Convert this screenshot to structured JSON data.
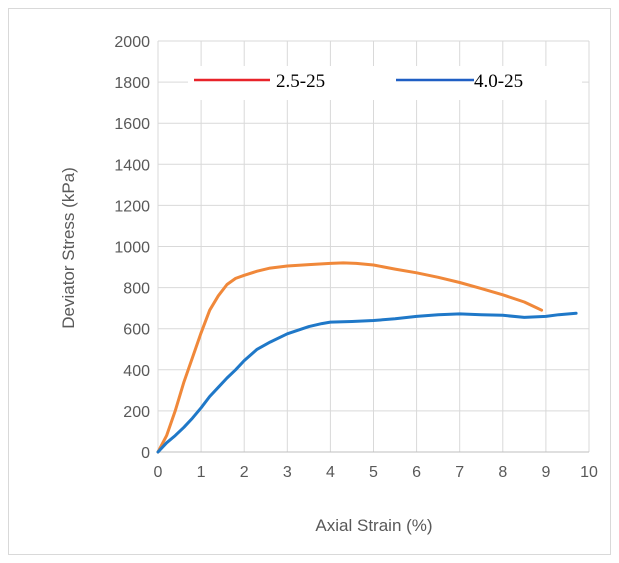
{
  "chart_data": {
    "type": "line",
    "title": "",
    "xlabel": "Axial Strain (%)",
    "ylabel": "Deviator Stress (kPa)",
    "xlim": [
      0,
      10
    ],
    "ylim": [
      0,
      2000
    ],
    "xticks": [
      0,
      1,
      2,
      3,
      4,
      5,
      6,
      7,
      8,
      9,
      10
    ],
    "yticks": [
      0,
      200,
      400,
      600,
      800,
      1000,
      1200,
      1400,
      1600,
      1800,
      2000
    ],
    "grid": true,
    "legend_position": "top",
    "legend": [
      {
        "label": "2.5-25",
        "color": "#e8232a"
      },
      {
        "label": "4.0-25",
        "color": "#1f5fc4"
      }
    ],
    "series": [
      {
        "color": "#f0883a",
        "x": [
          0,
          0.2,
          0.4,
          0.6,
          0.8,
          1.0,
          1.2,
          1.4,
          1.6,
          1.8,
          2.0,
          2.3,
          2.6,
          3.0,
          3.5,
          4.0,
          4.3,
          4.6,
          5.0,
          5.5,
          6.0,
          6.5,
          7.0,
          7.5,
          8.0,
          8.5,
          8.8,
          8.9
        ],
        "y": [
          0,
          80,
          200,
          340,
          460,
          580,
          690,
          760,
          815,
          845,
          860,
          880,
          895,
          905,
          912,
          918,
          920,
          918,
          910,
          890,
          872,
          850,
          825,
          795,
          765,
          730,
          700,
          690
        ]
      },
      {
        "color": "#1f78c8",
        "x": [
          0,
          0.2,
          0.4,
          0.6,
          0.8,
          1.0,
          1.2,
          1.4,
          1.6,
          1.8,
          2.0,
          2.3,
          2.6,
          3.0,
          3.5,
          3.8,
          4.0,
          4.5,
          5.0,
          5.5,
          6.0,
          6.5,
          7.0,
          7.5,
          8.0,
          8.5,
          9.0,
          9.3,
          9.7
        ],
        "y": [
          0,
          45,
          80,
          120,
          165,
          215,
          270,
          315,
          360,
          400,
          445,
          500,
          535,
          575,
          610,
          625,
          632,
          635,
          640,
          648,
          660,
          668,
          672,
          668,
          665,
          655,
          660,
          668,
          675
        ]
      }
    ]
  }
}
